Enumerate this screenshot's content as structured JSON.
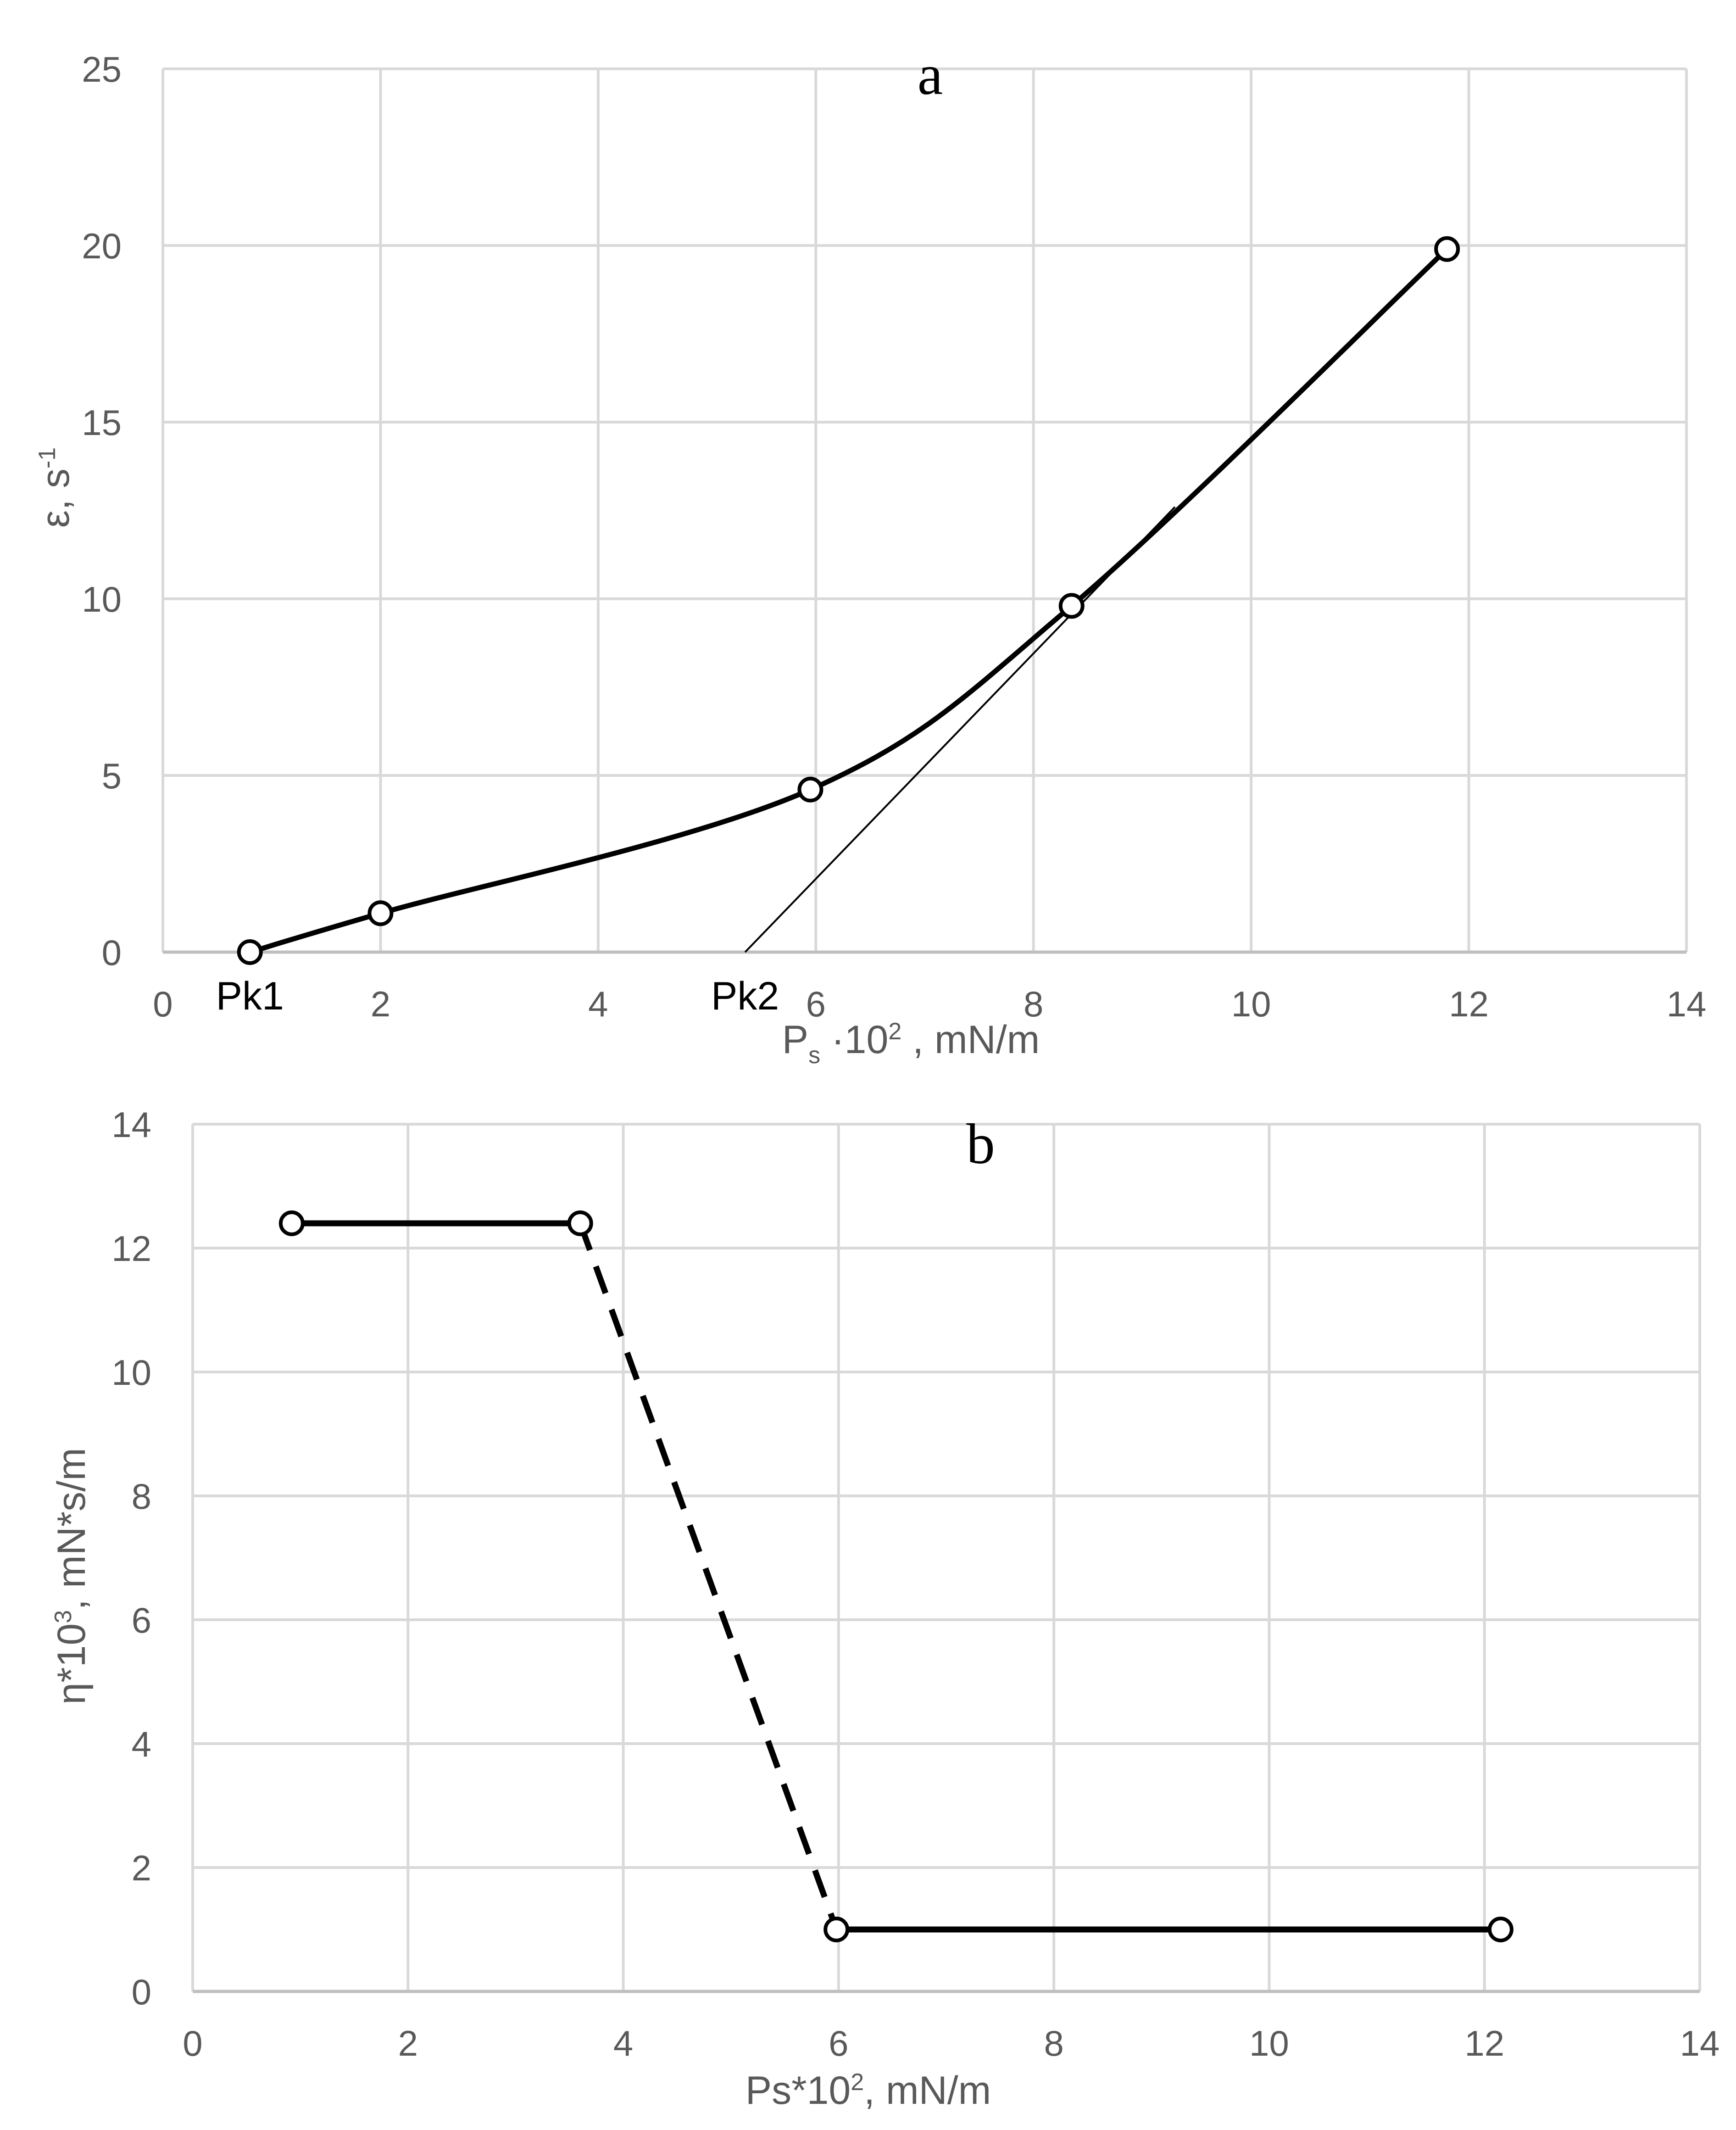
{
  "chart_data": [
    {
      "id": "a",
      "type": "line",
      "title": "a",
      "xlabel_main": "P",
      "xlabel_sub": "s",
      "xlabel_mid": " ·10",
      "xlabel_sup": "2",
      "xlabel_tail": " , mN/m",
      "ylabel_main": "ε, s",
      "ylabel_sup": "-1",
      "xlim": [
        0,
        14
      ],
      "ylim": [
        0,
        25
      ],
      "xticks": [
        "0",
        "2",
        "4",
        "6",
        "8",
        "10",
        "12",
        "14"
      ],
      "yticks": [
        "0",
        "5",
        "10",
        "15",
        "20",
        "25"
      ],
      "grid": true,
      "series": [
        {
          "name": "ε",
          "style": "smooth",
          "x": [
            0.8,
            2.0,
            5.95,
            8.35,
            11.8
          ],
          "y": [
            0.0,
            1.1,
            4.6,
            9.8,
            19.9
          ]
        }
      ],
      "tangent": {
        "x": [
          5.35,
          9.3
        ],
        "y": [
          0.0,
          12.6
        ]
      },
      "annotations": [
        {
          "text": "Pk1",
          "x": 0.8
        },
        {
          "text": "Pk2",
          "x": 5.35
        }
      ]
    },
    {
      "id": "b",
      "type": "line",
      "title": "b",
      "xlabel_main": "Ps*10",
      "xlabel_sup": "2",
      "xlabel_tail": ", mN/m",
      "ylabel_main": "η*10",
      "ylabel_sup": "3",
      "ylabel_tail": ", mN*s/m",
      "xlim": [
        0,
        14
      ],
      "ylim": [
        0,
        14
      ],
      "xticks": [
        "0",
        "2",
        "4",
        "6",
        "8",
        "10",
        "12",
        "14"
      ],
      "yticks": [
        "0",
        "2",
        "4",
        "6",
        "8",
        "10",
        "12",
        "14"
      ],
      "grid": true,
      "series": [
        {
          "name": "η",
          "x": [
            0.92,
            3.6,
            5.98,
            12.15
          ],
          "y": [
            12.4,
            12.4,
            1.0,
            1.0
          ],
          "segment_styles": [
            "solid",
            "dashed",
            "solid"
          ]
        }
      ]
    }
  ]
}
